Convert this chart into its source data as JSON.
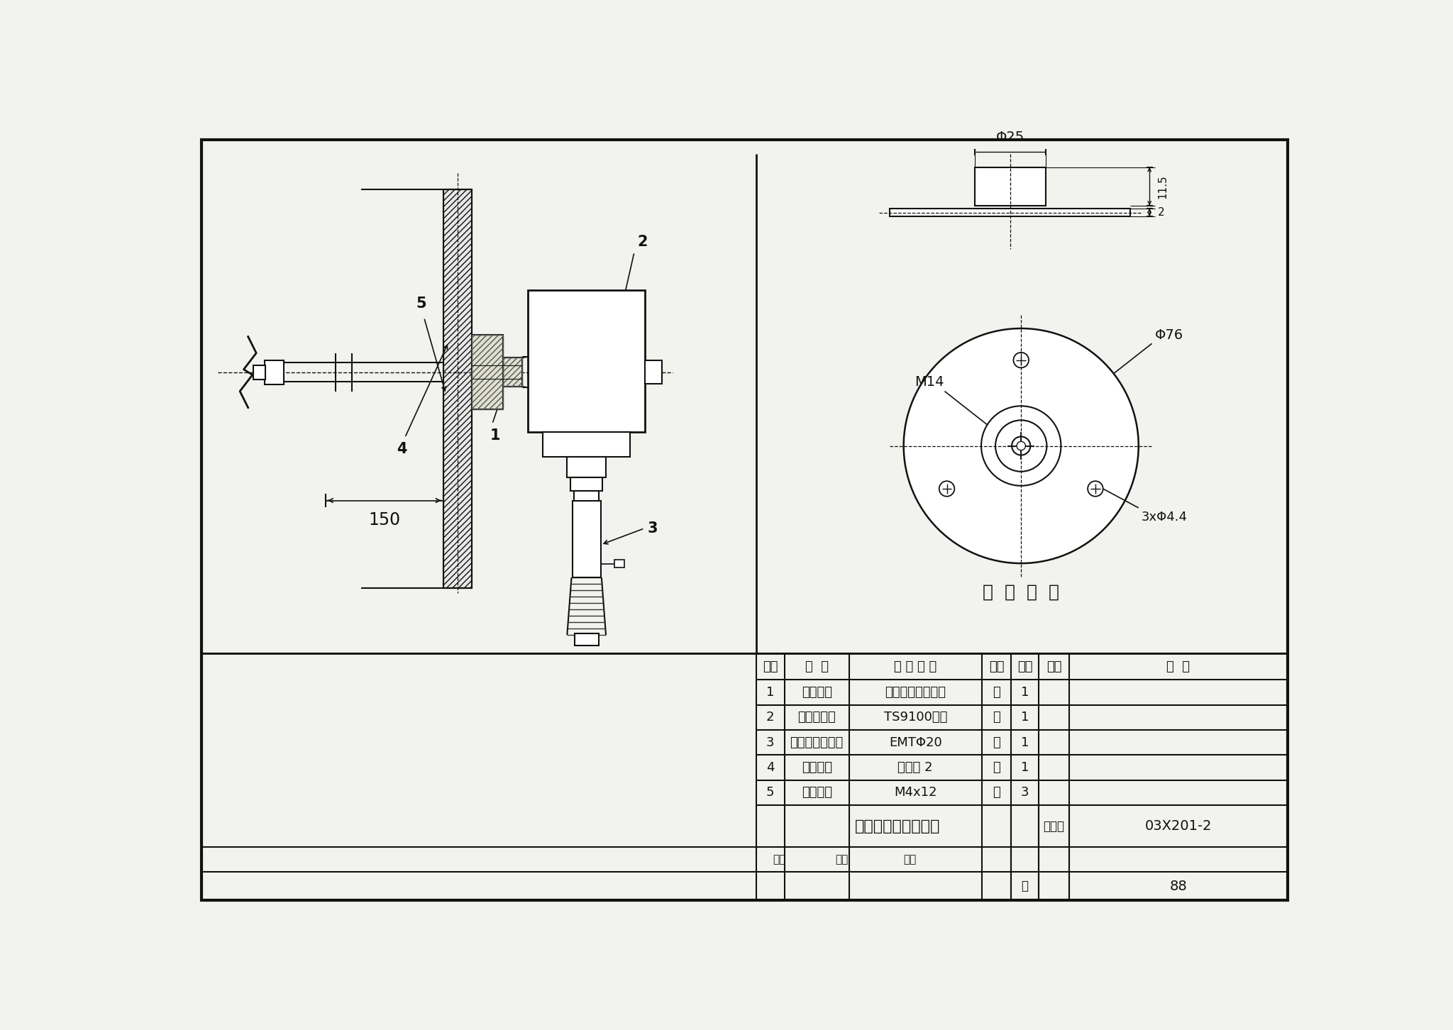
{
  "bg_color": "#f2f2ee",
  "line_color": "#111111",
  "table_headers": [
    "序号",
    "名  称",
    "型 号 规 格",
    "单位",
    "数量",
    "页次",
    "备  注"
  ],
  "table_rows": [
    [
      "1",
      "风管法兰",
      "温度传感器配套件",
      "个",
      "1",
      "",
      ""
    ],
    [
      "2",
      "温度传感器",
      "TS9100系列",
      "套",
      "1",
      "",
      ""
    ],
    [
      "3",
      "金属软管连接头",
      "EMTΦ20",
      "套",
      "1",
      "",
      ""
    ],
    [
      "4",
      "密封胶垫",
      "橡胶厚 2",
      "块",
      "1",
      "",
      ""
    ],
    [
      "5",
      "自攻螺丝",
      "M4x12",
      "个",
      "3",
      "",
      ""
    ]
  ],
  "drawing_title": "风管温度传感器安装",
  "atlas_label": "图集号",
  "atlas_no": "03X201-2",
  "page_label": "页",
  "page_no": "88",
  "flange_label": "风  管  法  兰",
  "dim_phi25": "Φ25",
  "dim_115": "11.5",
  "dim_2": "2",
  "dim_phi76": "Φ76",
  "dim_M14": "M14",
  "dim_bolts": "3xΦ4.4",
  "dim_150": "150",
  "label_1": "1",
  "label_2": "2",
  "label_3": "3",
  "label_4": "4",
  "label_5": "5"
}
